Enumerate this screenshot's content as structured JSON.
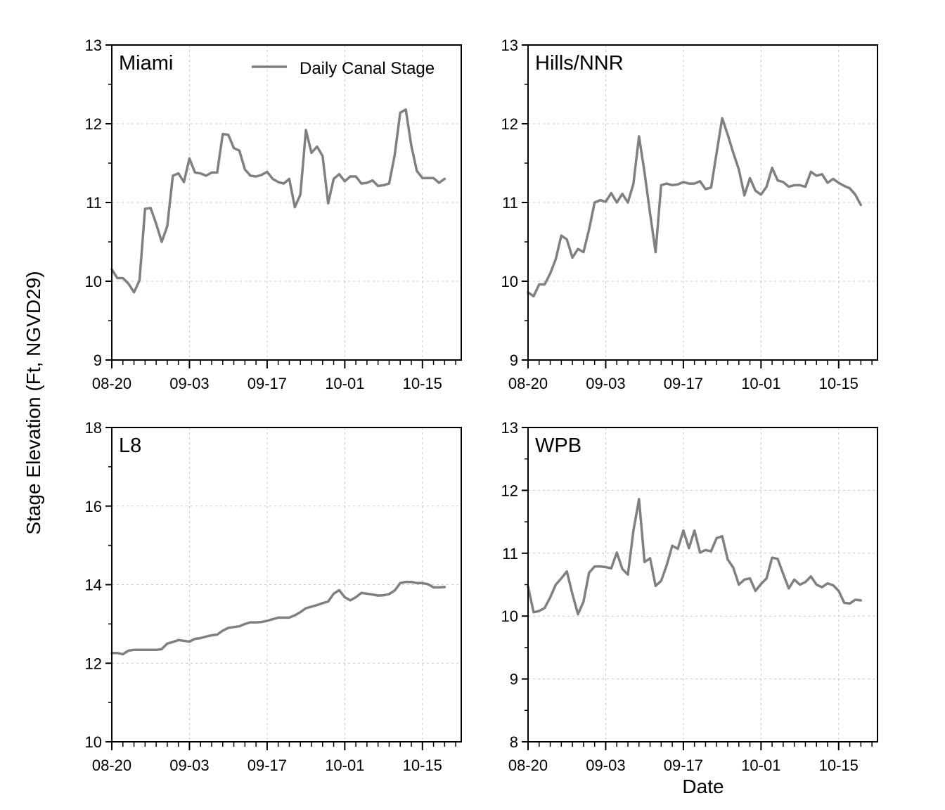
{
  "figure": {
    "y_axis_title": "Stage Elevation (Ft, NGVD29)",
    "x_axis_title": "Date",
    "legend_label": "Daily Canal Stage",
    "line_color": "#808080",
    "grid_color": "#c8c8c8"
  },
  "chart_data": [
    {
      "type": "line",
      "title": "Miami",
      "xlabel": "",
      "ylabel": "Stage Elevation (Ft, NGVD29)",
      "x_tick_labels": [
        "08-20",
        "09-03",
        "09-17",
        "10-01",
        "10-15"
      ],
      "x_tick_days": [
        0,
        14,
        28,
        42,
        56
      ],
      "xlim_days": [
        0,
        63
      ],
      "ylim": [
        9,
        13
      ],
      "y_ticks": [
        9,
        10,
        11,
        12,
        13
      ],
      "grid": true,
      "legend": "top-right",
      "series": [
        {
          "name": "Daily Canal Stage",
          "day": [
            0,
            1,
            2,
            3,
            4,
            5,
            6,
            7,
            8,
            9,
            10,
            11,
            12,
            13,
            14,
            15,
            16,
            17,
            18,
            19,
            20,
            21,
            22,
            23,
            24,
            25,
            26,
            27,
            28,
            29,
            30,
            31,
            32,
            33,
            34,
            35,
            36,
            37,
            38,
            39,
            40,
            41,
            42,
            43,
            44,
            45,
            46,
            47,
            48,
            49,
            50,
            51,
            52,
            53,
            54,
            55,
            56,
            57,
            58,
            59,
            60
          ],
          "values": [
            10.15,
            10.04,
            10.04,
            9.97,
            9.86,
            10.01,
            10.92,
            10.93,
            10.73,
            10.5,
            10.7,
            11.34,
            11.37,
            11.26,
            11.56,
            11.38,
            11.37,
            11.34,
            11.38,
            11.38,
            11.87,
            11.86,
            11.69,
            11.66,
            11.42,
            11.34,
            11.33,
            11.35,
            11.39,
            11.3,
            11.26,
            11.24,
            11.3,
            10.94,
            11.1,
            11.92,
            11.63,
            11.71,
            11.59,
            10.99,
            11.3,
            11.36,
            11.27,
            11.33,
            11.33,
            11.24,
            11.25,
            11.28,
            11.21,
            11.22,
            11.24,
            11.6,
            12.14,
            12.18,
            11.72,
            11.4,
            11.31,
            11.31,
            11.31,
            11.25,
            11.3
          ]
        }
      ]
    },
    {
      "type": "line",
      "title": "Hills/NNR",
      "xlabel": "",
      "ylabel": "",
      "x_tick_labels": [
        "08-20",
        "09-03",
        "09-17",
        "10-01",
        "10-15"
      ],
      "x_tick_days": [
        0,
        14,
        28,
        42,
        56
      ],
      "xlim_days": [
        0,
        63
      ],
      "ylim": [
        9,
        13
      ],
      "y_ticks": [
        9,
        10,
        11,
        12,
        13
      ],
      "grid": true,
      "series": [
        {
          "name": "Daily Canal Stage",
          "day": [
            0,
            1,
            2,
            3,
            4,
            5,
            6,
            7,
            8,
            9,
            10,
            11,
            12,
            13,
            14,
            15,
            16,
            17,
            18,
            19,
            20,
            21,
            22,
            23,
            24,
            25,
            26,
            27,
            28,
            29,
            30,
            31,
            32,
            33,
            34,
            35,
            36,
            37,
            38,
            39,
            40,
            41,
            42,
            43,
            44,
            45,
            46,
            47,
            48,
            49,
            50,
            51,
            52,
            53,
            54,
            55,
            56,
            57,
            58,
            59,
            60
          ],
          "values": [
            9.86,
            9.81,
            9.96,
            9.96,
            10.1,
            10.28,
            10.58,
            10.53,
            10.3,
            10.41,
            10.37,
            10.66,
            11.0,
            11.03,
            11.01,
            11.12,
            11.0,
            11.11,
            11.0,
            11.24,
            11.84,
            11.38,
            10.86,
            10.37,
            11.22,
            11.24,
            11.22,
            11.23,
            11.26,
            11.24,
            11.24,
            11.27,
            11.17,
            11.19,
            11.63,
            12.07,
            11.86,
            11.63,
            11.42,
            11.09,
            11.31,
            11.15,
            11.1,
            11.2,
            11.44,
            11.28,
            11.26,
            11.2,
            11.22,
            11.22,
            11.2,
            11.39,
            11.34,
            11.36,
            11.25,
            11.3,
            11.25,
            11.21,
            11.18,
            11.1,
            10.97
          ]
        }
      ]
    },
    {
      "type": "line",
      "title": "L8",
      "xlabel": "",
      "ylabel": "",
      "x_tick_labels": [
        "08-20",
        "09-03",
        "09-17",
        "10-01",
        "10-15"
      ],
      "x_tick_days": [
        0,
        14,
        28,
        42,
        56
      ],
      "xlim_days": [
        0,
        63
      ],
      "ylim": [
        10,
        18
      ],
      "y_ticks": [
        10,
        12,
        14,
        16,
        18
      ],
      "grid": true,
      "series": [
        {
          "name": "Daily Canal Stage",
          "day": [
            0,
            1,
            2,
            3,
            4,
            5,
            6,
            7,
            8,
            9,
            10,
            11,
            12,
            13,
            14,
            15,
            16,
            17,
            18,
            19,
            20,
            21,
            22,
            23,
            24,
            25,
            26,
            27,
            28,
            29,
            30,
            31,
            32,
            33,
            34,
            35,
            36,
            37,
            38,
            39,
            40,
            41,
            42,
            43,
            44,
            45,
            46,
            47,
            48,
            49,
            50,
            51,
            52,
            53,
            54,
            55,
            56,
            57,
            58,
            59,
            60
          ],
          "values": [
            12.26,
            12.26,
            12.23,
            12.32,
            12.34,
            12.34,
            12.34,
            12.34,
            12.34,
            12.36,
            12.5,
            12.54,
            12.59,
            12.57,
            12.55,
            12.62,
            12.64,
            12.68,
            12.71,
            12.73,
            12.83,
            12.9,
            12.92,
            12.94,
            13.0,
            13.04,
            13.04,
            13.05,
            13.08,
            13.12,
            13.16,
            13.16,
            13.16,
            13.22,
            13.3,
            13.4,
            13.44,
            13.48,
            13.53,
            13.57,
            13.77,
            13.86,
            13.68,
            13.6,
            13.68,
            13.79,
            13.77,
            13.75,
            13.72,
            13.73,
            13.76,
            13.85,
            14.04,
            14.07,
            14.07,
            14.04,
            14.04,
            14.01,
            13.93,
            13.93,
            13.94
          ]
        }
      ]
    },
    {
      "type": "line",
      "title": "WPB",
      "xlabel": "Date",
      "ylabel": "",
      "x_tick_labels": [
        "08-20",
        "09-03",
        "09-17",
        "10-01",
        "10-15"
      ],
      "x_tick_days": [
        0,
        14,
        28,
        42,
        56
      ],
      "xlim_days": [
        0,
        63
      ],
      "ylim": [
        8,
        13
      ],
      "y_ticks": [
        8,
        9,
        10,
        11,
        12,
        13
      ],
      "grid": true,
      "series": [
        {
          "name": "Daily Canal Stage",
          "day": [
            0,
            1,
            2,
            3,
            4,
            5,
            6,
            7,
            8,
            9,
            10,
            11,
            12,
            13,
            14,
            15,
            16,
            17,
            18,
            19,
            20,
            21,
            22,
            23,
            24,
            25,
            26,
            27,
            28,
            29,
            30,
            31,
            32,
            33,
            34,
            35,
            36,
            37,
            38,
            39,
            40,
            41,
            42,
            43,
            44,
            45,
            46,
            47,
            48,
            49,
            50,
            51,
            52,
            53,
            54,
            55,
            56,
            57,
            58,
            59,
            60
          ],
          "values": [
            10.47,
            10.06,
            10.08,
            10.13,
            10.3,
            10.5,
            10.6,
            10.71,
            10.35,
            10.03,
            10.23,
            10.69,
            10.79,
            10.79,
            10.78,
            10.76,
            11.01,
            10.75,
            10.66,
            11.36,
            11.86,
            10.86,
            10.92,
            10.48,
            10.56,
            10.81,
            11.12,
            11.07,
            11.36,
            11.08,
            11.36,
            11.01,
            11.05,
            11.03,
            11.24,
            11.27,
            10.9,
            10.77,
            10.5,
            10.58,
            10.6,
            10.4,
            10.51,
            10.6,
            10.93,
            10.91,
            10.67,
            10.44,
            10.58,
            10.5,
            10.54,
            10.63,
            10.5,
            10.46,
            10.52,
            10.49,
            10.4,
            10.21,
            10.2,
            10.26,
            10.25
          ]
        }
      ]
    }
  ]
}
